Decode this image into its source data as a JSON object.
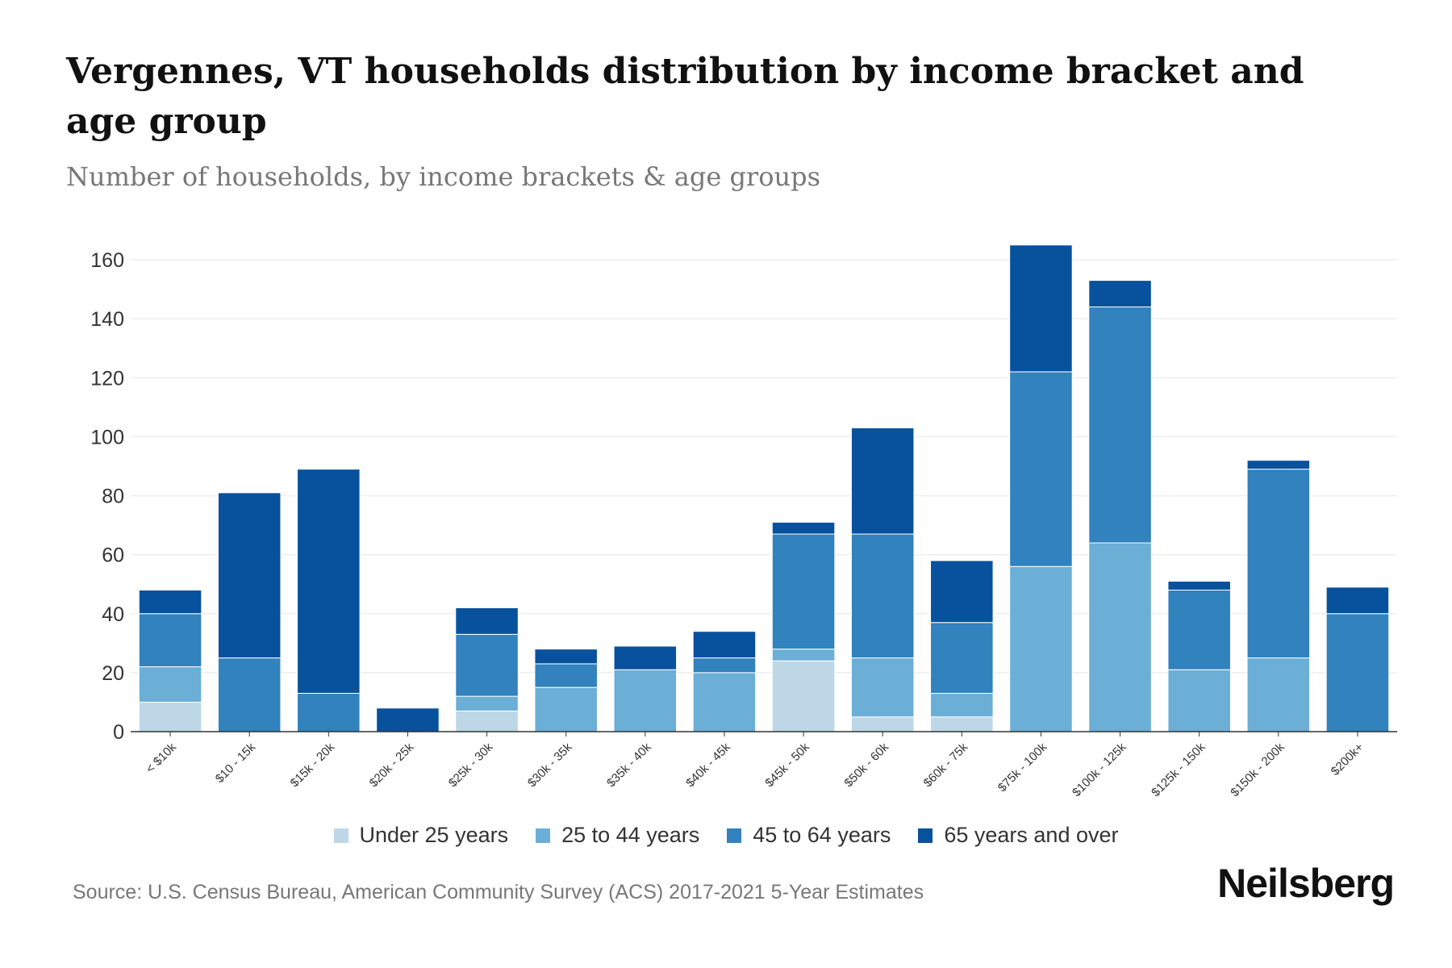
{
  "title": "Vergennes, VT households distribution by income bracket and age group",
  "subtitle": "Number of households, by income brackets & age groups",
  "source": "Source: U.S. Census Bureau, American Community Survey (ACS) 2017-2021 5-Year Estimates",
  "logo": "Neilsberg",
  "chart_data": {
    "type": "bar",
    "stacked": true,
    "categories": [
      "< $10k",
      "$10 - 15k",
      "$15k - 20k",
      "$20k - 25k",
      "$25k - 30k",
      "$30k - 35k",
      "$35k - 40k",
      "$40k - 45k",
      "$45k - 50k",
      "$50k - 60k",
      "$60k - 75k",
      "$75k - 100k",
      "$100k - 125k",
      "$125k - 150k",
      "$150k - 200k",
      "$200k+"
    ],
    "series": [
      {
        "name": "Under 25 years",
        "color": "#bdd7e7",
        "values": [
          10,
          0,
          0,
          0,
          7,
          0,
          0,
          0,
          24,
          5,
          5,
          0,
          0,
          0,
          0,
          0
        ]
      },
      {
        "name": "25 to 44 years",
        "color": "#6baed6",
        "values": [
          12,
          0,
          0,
          0,
          5,
          15,
          21,
          20,
          4,
          20,
          8,
          56,
          64,
          21,
          25,
          0
        ]
      },
      {
        "name": "45 to 64 years",
        "color": "#3182bd",
        "values": [
          18,
          25,
          13,
          0,
          21,
          8,
          0,
          5,
          39,
          42,
          24,
          66,
          80,
          27,
          64,
          40
        ]
      },
      {
        "name": "65 years and over",
        "color": "#08519c",
        "values": [
          8,
          56,
          76,
          8,
          9,
          5,
          8,
          9,
          4,
          36,
          21,
          43,
          9,
          3,
          3,
          9
        ]
      }
    ],
    "yticks": [
      0,
      20,
      40,
      60,
      80,
      100,
      120,
      140,
      160
    ],
    "ylim": [
      0,
      165
    ],
    "grid": true,
    "legend": "bottom"
  }
}
